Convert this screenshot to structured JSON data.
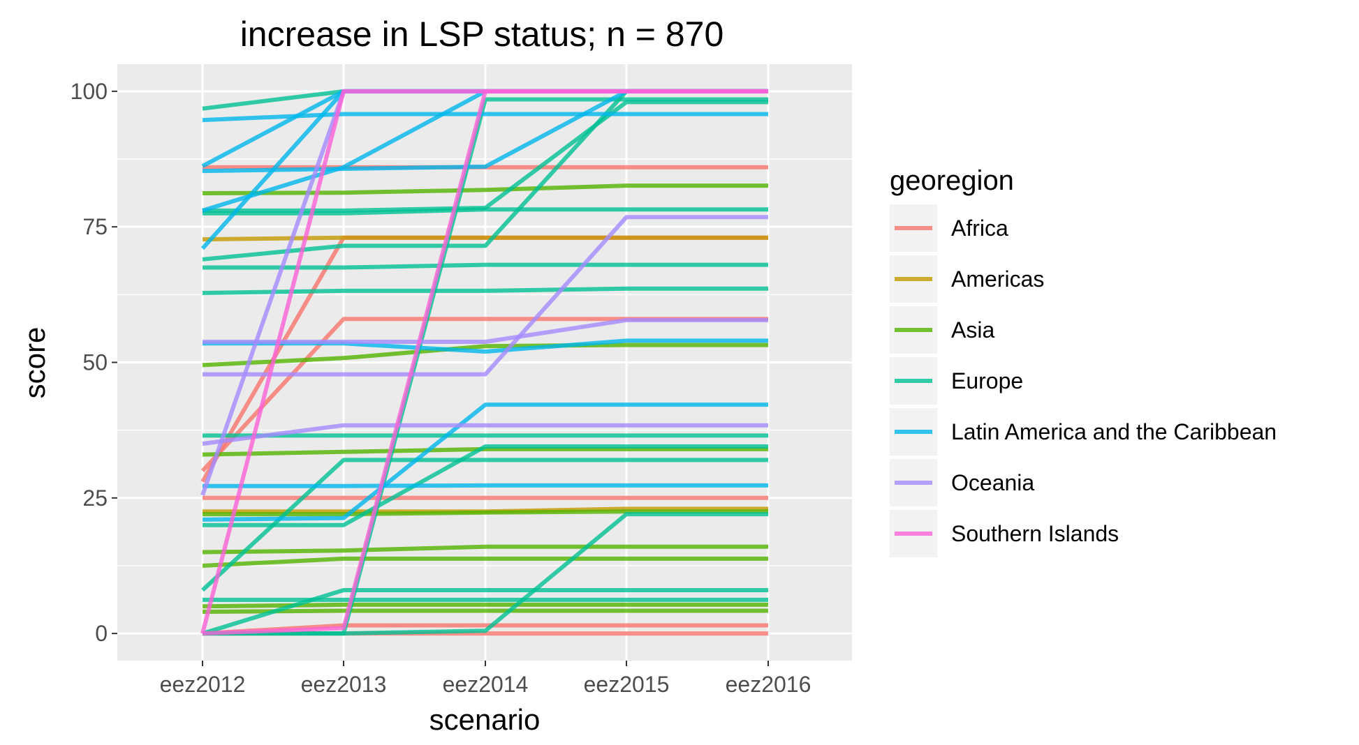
{
  "chart_data": {
    "type": "line",
    "title": "increase in LSP status; n = 870",
    "xlabel": "scenario",
    "ylabel": "score",
    "x": [
      "eez2012",
      "eez2013",
      "eez2014",
      "eez2015",
      "eez2016"
    ],
    "ylim": [
      -5,
      105
    ],
    "yticks": [
      0,
      25,
      50,
      75,
      100
    ],
    "grid": true,
    "legend": {
      "title": "georegion",
      "placement": "right"
    },
    "groups": [
      {
        "name": "Africa",
        "color": "#F8766D"
      },
      {
        "name": "Americas",
        "color": "#C49A00"
      },
      {
        "name": "Asia",
        "color": "#53B400"
      },
      {
        "name": "Europe",
        "color": "#00C094"
      },
      {
        "name": "Latin America and the Caribbean",
        "color": "#00B6EB"
      },
      {
        "name": "Oceania",
        "color": "#A58AFF"
      },
      {
        "name": "Southern Islands",
        "color": "#FB61D7"
      }
    ],
    "series": [
      {
        "group": "Africa",
        "values": [
          86,
          86,
          86,
          86,
          86
        ]
      },
      {
        "group": "Africa",
        "values": [
          30,
          58,
          58,
          58,
          58
        ]
      },
      {
        "group": "Africa",
        "values": [
          28,
          73,
          73,
          73,
          73
        ]
      },
      {
        "group": "Africa",
        "values": [
          25,
          25,
          25,
          25,
          25
        ]
      },
      {
        "group": "Africa",
        "values": [
          0,
          1.5,
          1.5,
          1.5,
          1.5
        ]
      },
      {
        "group": "Africa",
        "values": [
          0,
          0,
          0,
          0,
          0
        ]
      },
      {
        "group": "Americas",
        "values": [
          72.7,
          73,
          73,
          73,
          73
        ]
      },
      {
        "group": "Americas",
        "values": [
          22.5,
          22.5,
          22.5,
          23,
          23
        ]
      },
      {
        "group": "Asia",
        "values": [
          81.2,
          81.3,
          81.8,
          82.6,
          82.6
        ]
      },
      {
        "group": "Asia",
        "values": [
          49.5,
          50.8,
          53,
          53.2,
          53.2
        ]
      },
      {
        "group": "Asia",
        "values": [
          33,
          33.5,
          34,
          34,
          34
        ]
      },
      {
        "group": "Asia",
        "values": [
          22,
          22,
          22.3,
          22.5,
          22.5
        ]
      },
      {
        "group": "Asia",
        "values": [
          15,
          15.3,
          16,
          16,
          16
        ]
      },
      {
        "group": "Asia",
        "values": [
          12.5,
          13.8,
          13.8,
          13.8,
          13.8
        ]
      },
      {
        "group": "Asia",
        "values": [
          5,
          5.3,
          5.3,
          5.3,
          5.3
        ]
      },
      {
        "group": "Asia",
        "values": [
          4,
          4.2,
          4.2,
          4.2,
          4.2
        ]
      },
      {
        "group": "Europe",
        "values": [
          96.8,
          100,
          100,
          100,
          100
        ]
      },
      {
        "group": "Europe",
        "values": [
          78,
          78,
          78.5,
          98,
          98
        ]
      },
      {
        "group": "Europe",
        "values": [
          77.5,
          77.5,
          78.2,
          78.2,
          78.2
        ]
      },
      {
        "group": "Europe",
        "values": [
          69,
          71.5,
          71.5,
          100,
          100
        ]
      },
      {
        "group": "Europe",
        "values": [
          67.5,
          67.5,
          68,
          68,
          68
        ]
      },
      {
        "group": "Europe",
        "values": [
          62.8,
          63.2,
          63.2,
          63.6,
          63.6
        ]
      },
      {
        "group": "Europe",
        "values": [
          36.5,
          36.5,
          36.5,
          36.5,
          36.5
        ]
      },
      {
        "group": "Europe",
        "values": [
          20,
          20,
          34.5,
          34.5,
          34.5
        ]
      },
      {
        "group": "Europe",
        "values": [
          8,
          32,
          32,
          32,
          32
        ]
      },
      {
        "group": "Europe",
        "values": [
          6.2,
          6.2,
          6.2,
          6.2,
          6.2
        ]
      },
      {
        "group": "Europe",
        "values": [
          0,
          0,
          0.5,
          22,
          22
        ]
      },
      {
        "group": "Europe",
        "values": [
          0,
          8,
          8,
          8,
          8
        ]
      },
      {
        "group": "Europe",
        "values": [
          0,
          0,
          98.5,
          98.5,
          98.5
        ]
      },
      {
        "group": "Latin America and the Caribbean",
        "values": [
          94.7,
          95.8,
          95.8,
          95.8,
          95.8
        ]
      },
      {
        "group": "Latin America and the Caribbean",
        "values": [
          86.2,
          100,
          100,
          100,
          100
        ]
      },
      {
        "group": "Latin America and the Caribbean",
        "values": [
          85.3,
          85.7,
          86.1,
          100,
          100
        ]
      },
      {
        "group": "Latin America and the Caribbean",
        "values": [
          78,
          86,
          100,
          100,
          100
        ]
      },
      {
        "group": "Latin America and the Caribbean",
        "values": [
          71,
          100,
          100,
          100,
          100
        ]
      },
      {
        "group": "Latin America and the Caribbean",
        "values": [
          53.5,
          53.5,
          52,
          54,
          54
        ]
      },
      {
        "group": "Latin America and the Caribbean",
        "values": [
          27.2,
          27.2,
          27.3,
          27.3,
          27.3
        ]
      },
      {
        "group": "Latin America and the Caribbean",
        "values": [
          21,
          21.3,
          42.2,
          42.2,
          42.2
        ]
      },
      {
        "group": "Oceania",
        "values": [
          53.8,
          53.8,
          53.8,
          57.8,
          57.8
        ]
      },
      {
        "group": "Oceania",
        "values": [
          47.8,
          47.8,
          47.8,
          76.8,
          76.8
        ]
      },
      {
        "group": "Oceania",
        "values": [
          35,
          38.4,
          38.4,
          38.4,
          38.4
        ]
      },
      {
        "group": "Oceania",
        "values": [
          25.5,
          100,
          100,
          100,
          100
        ]
      },
      {
        "group": "Southern Islands",
        "values": [
          0,
          100,
          100,
          100,
          100
        ]
      },
      {
        "group": "Southern Islands",
        "values": [
          0,
          1,
          100,
          100,
          100
        ]
      }
    ]
  }
}
